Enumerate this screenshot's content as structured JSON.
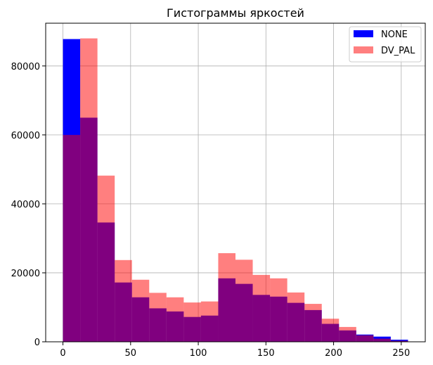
{
  "chart_data": {
    "type": "bar",
    "title": "Гистограммы яркостей",
    "xlabel": "",
    "ylabel": "",
    "xlim": [
      -12.75,
      267.75
    ],
    "ylim": [
      0,
      92400
    ],
    "xticks": [
      0,
      50,
      100,
      150,
      200,
      250
    ],
    "yticks": [
      0,
      20000,
      40000,
      60000,
      80000
    ],
    "grid": true,
    "legend_position": "top-right",
    "bin_edges": [
      0,
      12.75,
      25.5,
      38.25,
      51,
      63.75,
      76.5,
      89.25,
      102,
      114.75,
      127.5,
      140.25,
      153,
      165.75,
      178.5,
      191.25,
      204,
      216.75,
      229.5,
      242.25,
      255
    ],
    "series": [
      {
        "name": "NONE",
        "color": "#0000ff",
        "opacity": 1,
        "values": [
          87800,
          65000,
          34600,
          17200,
          12900,
          9700,
          8800,
          7200,
          7600,
          18400,
          16800,
          13600,
          13100,
          11300,
          9200,
          5200,
          3300,
          2100,
          1500,
          600
        ]
      },
      {
        "name": "DV_PAL",
        "color": "#ff0000",
        "opacity": 0.5,
        "values": [
          60000,
          88000,
          48200,
          23700,
          18000,
          14200,
          12900,
          11400,
          11700,
          25700,
          23800,
          19400,
          18400,
          14300,
          11000,
          6700,
          4300,
          1900,
          900,
          300
        ]
      }
    ]
  }
}
